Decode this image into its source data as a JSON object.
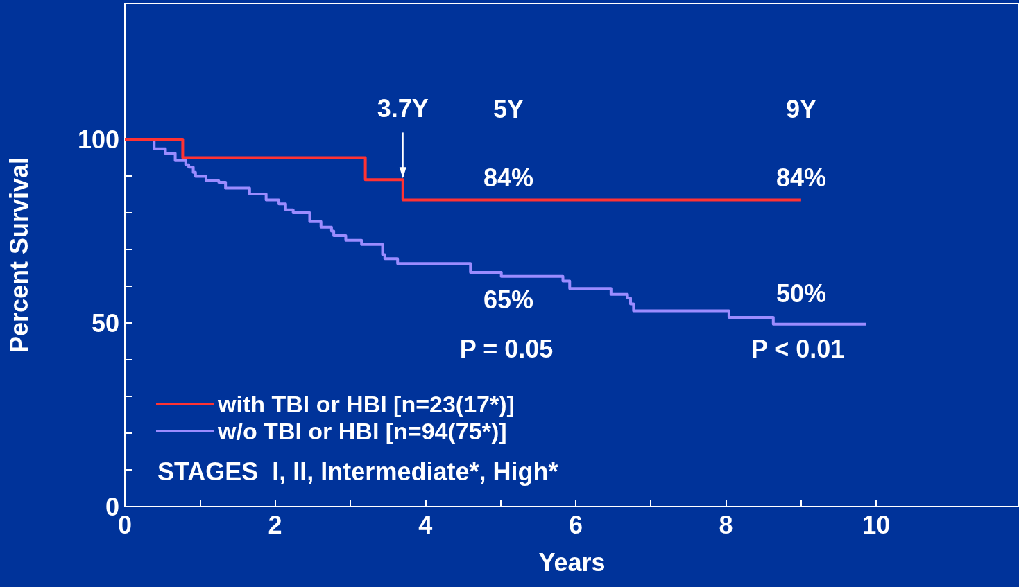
{
  "chart_data": {
    "type": "step",
    "xlabel": "Years",
    "ylabel": "Percent Survival",
    "xlim": [
      0,
      11.9
    ],
    "ylim": [
      0,
      137
    ],
    "xticks": [
      0,
      {
        "value": 1,
        "label": null
      },
      2,
      {
        "value": 3,
        "label": null
      },
      4,
      {
        "value": 5,
        "label": null
      },
      6,
      {
        "value": 7,
        "label": null
      },
      8,
      {
        "value": 9,
        "label": null
      },
      10
    ],
    "yticks": [
      0,
      {
        "value": 10,
        "label": null
      },
      {
        "value": 20,
        "label": null
      },
      {
        "value": 30,
        "label": null
      },
      {
        "value": 40,
        "label": null
      },
      50,
      {
        "value": 60,
        "label": null
      },
      {
        "value": 70,
        "label": null
      },
      {
        "value": 80,
        "label": null
      },
      {
        "value": 90,
        "label": null
      },
      100
    ],
    "grid": false,
    "legend": "bottom left",
    "marker": "none",
    "line_style": "solid",
    "series": [
      {
        "name": "with TBI or HBI [n=23(17*)]",
        "color": "#ff3333",
        "x": [
          0,
          0.77,
          3.2,
          3.7,
          9.0
        ],
        "values": [
          100,
          95,
          89,
          83.5,
          83.5
        ]
      },
      {
        "name": "w/o TBI or HBI [n=94(75*)]",
        "color": "#9b8cff",
        "x": [
          0,
          0.39,
          0.54,
          0.67,
          0.81,
          0.85,
          0.91,
          0.94,
          1.08,
          1.25,
          1.34,
          1.66,
          1.88,
          2.05,
          2.14,
          2.24,
          2.46,
          2.61,
          2.75,
          2.78,
          2.94,
          3.15,
          3.43,
          3.46,
          3.63,
          4.6,
          5.01,
          5.83,
          5.92,
          6.47,
          6.69,
          6.73,
          6.77,
          8.04,
          8.63,
          9.86
        ],
        "values": [
          100,
          97.4,
          96.2,
          94.2,
          93.1,
          92.4,
          91,
          89.9,
          88.7,
          88.3,
          86.7,
          85.1,
          83.5,
          82.4,
          80.8,
          80,
          77.6,
          76.1,
          75,
          73.8,
          72.5,
          71.4,
          68.6,
          67.5,
          66.2,
          63.8,
          62.7,
          61.4,
          59.4,
          57.8,
          56.8,
          55.2,
          53.3,
          51.5,
          49.7,
          49.7
        ]
      }
    ],
    "annotations": [
      {
        "text": "3.7Y",
        "x": 3.7,
        "y": 89
      },
      "5Y",
      "9Y",
      "84%",
      "84%",
      "65%",
      "50%",
      "P = 0.05",
      "P < 0.01",
      "STAGES  I, II, Intermediate*, High*"
    ]
  }
}
